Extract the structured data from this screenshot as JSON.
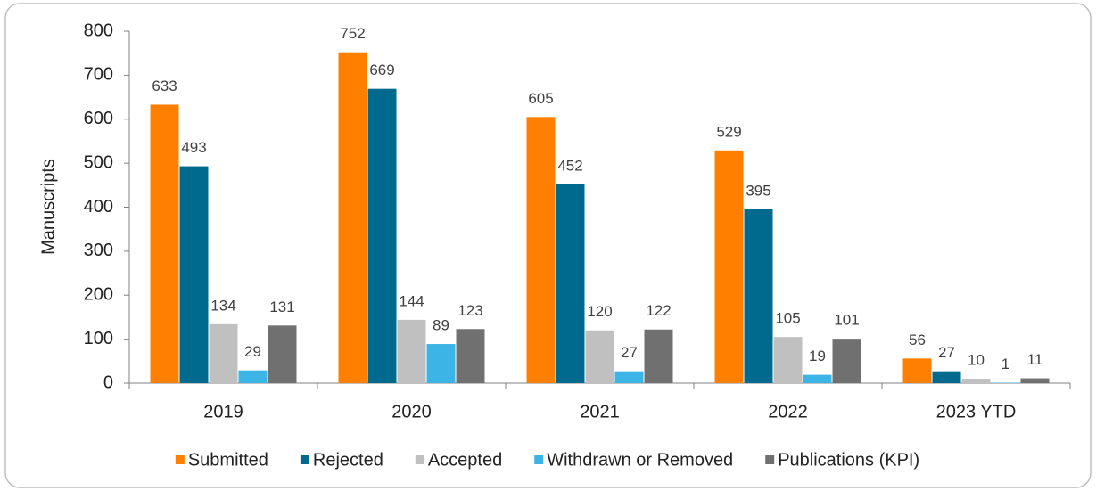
{
  "chart_data": {
    "type": "bar",
    "y_label": "Manuscripts",
    "categories": [
      "2019",
      "2020",
      "2021",
      "2022",
      "2023 YTD"
    ],
    "series": [
      {
        "name": "Submitted",
        "color": "#ff8000",
        "values": [
          633,
          752,
          605,
          529,
          56
        ]
      },
      {
        "name": "Rejected",
        "color": "#006a8e",
        "values": [
          493,
          669,
          452,
          395,
          27
        ]
      },
      {
        "name": "Accepted",
        "color": "#c0c0c0",
        "values": [
          134,
          144,
          120,
          105,
          10
        ]
      },
      {
        "name": "Withdrawn or Removed",
        "color": "#3cb4e5",
        "values": [
          29,
          89,
          27,
          19,
          1
        ]
      },
      {
        "name": "Publications (KPI)",
        "color": "#707070",
        "values": [
          131,
          123,
          122,
          101,
          11
        ]
      }
    ],
    "ylim": [
      0,
      800
    ],
    "yticks": [
      0,
      100,
      200,
      300,
      400,
      500,
      600,
      700,
      800
    ],
    "legend": "bottom"
  }
}
